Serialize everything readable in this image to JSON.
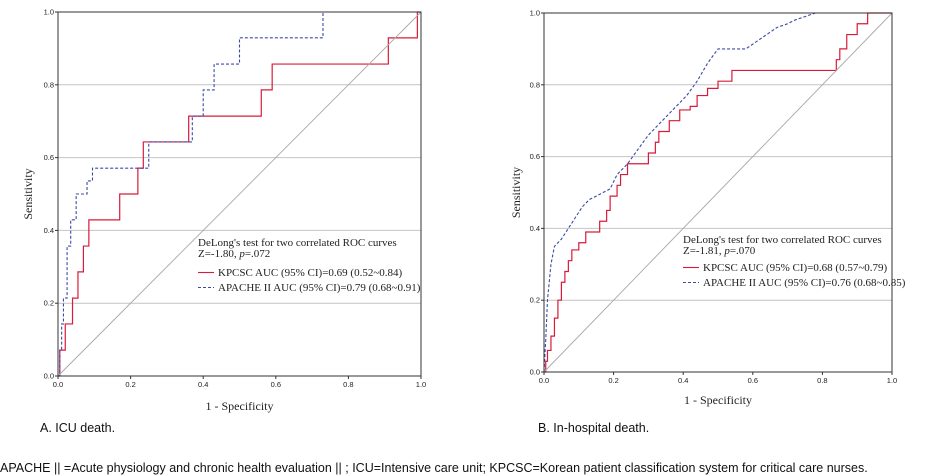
{
  "chart_data": [
    {
      "type": "line",
      "panel_label": "A. ICU death.",
      "xlabel": "1 - Specificity",
      "ylabel": "Sensitivity",
      "xlim": [
        0,
        1
      ],
      "ylim": [
        0,
        1
      ],
      "xticks": [
        "0.0",
        "0.2",
        "0.4",
        "0.6",
        "0.8",
        "1.0"
      ],
      "yticks": [
        "0.0",
        "0.2",
        "0.4",
        "0.6",
        "0.8",
        "1.0"
      ],
      "grid": "horizontal",
      "annotation": {
        "title": "DeLong's test for two correlated ROC curves",
        "stat_prefix": "Z=-1.80, ",
        "p_symbol": "p",
        "p_value": "=.072"
      },
      "series": [
        {
          "name": "KPCSC AUC (95% CI)=0.69 (0.52~0.84)",
          "color": "#d81b3a",
          "style": "solid",
          "x": [
            0,
            0.005,
            0.005,
            0.02,
            0.02,
            0.04,
            0.04,
            0.055,
            0.055,
            0.07,
            0.07,
            0.085,
            0.085,
            0.1,
            0.1,
            0.17,
            0.17,
            0.22,
            0.22,
            0.235,
            0.235,
            0.36,
            0.36,
            0.56,
            0.56,
            0.59,
            0.59,
            0.91,
            0.91,
            0.99,
            0.99,
            1.0
          ],
          "y": [
            0,
            0,
            0.071,
            0.071,
            0.143,
            0.143,
            0.214,
            0.214,
            0.286,
            0.286,
            0.357,
            0.357,
            0.429,
            0.429,
            0.429,
            0.429,
            0.5,
            0.5,
            0.571,
            0.571,
            0.643,
            0.643,
            0.714,
            0.714,
            0.786,
            0.786,
            0.857,
            0.857,
            0.929,
            0.929,
            1.0,
            1.0
          ]
        },
        {
          "name": "APACHE II AUC (95% CI)=0.79 (0.68~0.91)",
          "color": "#3b4aa8",
          "style": "dashed",
          "x": [
            0,
            0.005,
            0.005,
            0.01,
            0.01,
            0.015,
            0.015,
            0.025,
            0.025,
            0.035,
            0.035,
            0.05,
            0.05,
            0.065,
            0.065,
            0.08,
            0.08,
            0.095,
            0.095,
            0.225,
            0.225,
            0.25,
            0.25,
            0.37,
            0.37,
            0.4,
            0.4,
            0.43,
            0.43,
            0.5,
            0.5,
            0.7,
            0.7,
            0.73,
            0.73,
            1.0
          ],
          "y": [
            0,
            0,
            0.071,
            0.071,
            0.143,
            0.143,
            0.214,
            0.214,
            0.357,
            0.357,
            0.429,
            0.429,
            0.5,
            0.5,
            0.5,
            0.5,
            0.536,
            0.536,
            0.571,
            0.571,
            0.571,
            0.571,
            0.643,
            0.643,
            0.714,
            0.714,
            0.786,
            0.786,
            0.857,
            0.857,
            0.929,
            0.929,
            0.929,
            0.929,
            1.0,
            1.0
          ]
        },
        {
          "name": "",
          "color": "#a8a8a8",
          "style": "reference",
          "x": [
            0,
            1
          ],
          "y": [
            0,
            1
          ]
        }
      ]
    },
    {
      "type": "line",
      "panel_label": "B. In-hospital death.",
      "xlabel": "1 - Specificity",
      "ylabel": "Sensitivity",
      "xlim": [
        0,
        1
      ],
      "ylim": [
        0,
        1
      ],
      "xticks": [
        "0.0",
        "0.2",
        "0.4",
        "0.6",
        "0.8",
        "1.0"
      ],
      "yticks": [
        "0.0",
        "0.2",
        "0.4",
        "0.6",
        "0.8",
        "1.0"
      ],
      "grid": "horizontal",
      "annotation": {
        "title": "DeLong's test for two correlated ROC curves",
        "stat_prefix": "Z=-1.81, ",
        "p_symbol": "p",
        "p_value": "=.070"
      },
      "series": [
        {
          "name": "KPCSC AUC (95% CI)=0.68 (0.57~0.79)",
          "color": "#d81b3a",
          "style": "solid",
          "x": [
            0,
            0.005,
            0.005,
            0.01,
            0.01,
            0.02,
            0.02,
            0.03,
            0.03,
            0.04,
            0.04,
            0.05,
            0.05,
            0.06,
            0.06,
            0.07,
            0.07,
            0.08,
            0.08,
            0.1,
            0.1,
            0.12,
            0.12,
            0.16,
            0.16,
            0.18,
            0.18,
            0.19,
            0.19,
            0.21,
            0.21,
            0.22,
            0.22,
            0.24,
            0.24,
            0.25,
            0.25,
            0.26,
            0.26,
            0.3,
            0.3,
            0.32,
            0.32,
            0.33,
            0.33,
            0.36,
            0.36,
            0.38,
            0.38,
            0.39,
            0.39,
            0.42,
            0.42,
            0.44,
            0.44,
            0.47,
            0.47,
            0.5,
            0.5,
            0.54,
            0.54,
            0.57,
            0.57,
            0.6,
            0.6,
            0.84,
            0.84,
            0.85,
            0.85,
            0.87,
            0.87,
            0.9,
            0.9,
            0.93,
            0.93,
            0.97,
            0.97,
            1.0
          ],
          "y": [
            0,
            0,
            0.03,
            0.03,
            0.06,
            0.06,
            0.1,
            0.1,
            0.15,
            0.15,
            0.2,
            0.2,
            0.25,
            0.25,
            0.28,
            0.28,
            0.31,
            0.31,
            0.34,
            0.34,
            0.36,
            0.36,
            0.39,
            0.39,
            0.42,
            0.42,
            0.45,
            0.45,
            0.49,
            0.49,
            0.52,
            0.52,
            0.55,
            0.55,
            0.58,
            0.58,
            0.58,
            0.58,
            0.58,
            0.58,
            0.61,
            0.61,
            0.64,
            0.64,
            0.67,
            0.67,
            0.7,
            0.7,
            0.7,
            0.7,
            0.73,
            0.73,
            0.74,
            0.74,
            0.77,
            0.77,
            0.79,
            0.79,
            0.81,
            0.81,
            0.84,
            0.84,
            0.84,
            0.84,
            0.84,
            0.84,
            0.87,
            0.87,
            0.9,
            0.9,
            0.94,
            0.94,
            0.97,
            0.97,
            1.0,
            1.0,
            1.0,
            1.0
          ]
        },
        {
          "name": "APACHE II AUC (95% CI)=0.76 (0.68~0.85)",
          "color": "#3b4aa8",
          "style": "dashed",
          "x": [
            0,
            0.005,
            0.01,
            0.015,
            0.02,
            0.03,
            0.05,
            0.07,
            0.09,
            0.11,
            0.13,
            0.15,
            0.19,
            0.21,
            0.24,
            0.27,
            0.3,
            0.34,
            0.38,
            0.41,
            0.44,
            0.47,
            0.5,
            0.58,
            0.61,
            0.64,
            0.67,
            0.7,
            0.72,
            0.75,
            0.78,
            1.0
          ],
          "y": [
            0,
            0.09,
            0.2,
            0.25,
            0.3,
            0.35,
            0.37,
            0.4,
            0.43,
            0.46,
            0.48,
            0.49,
            0.51,
            0.55,
            0.58,
            0.62,
            0.66,
            0.7,
            0.74,
            0.77,
            0.81,
            0.86,
            0.9,
            0.9,
            0.92,
            0.94,
            0.96,
            0.97,
            0.98,
            0.99,
            1.0,
            1.0
          ]
        },
        {
          "name": "",
          "color": "#a8a8a8",
          "style": "reference",
          "x": [
            0,
            1
          ],
          "y": [
            0,
            1
          ]
        }
      ]
    }
  ],
  "footnote": "APACHE  ||  =Acute physiology and chronic health evaluation  || ; ICU=Intensive care unit; KPCSC=Korean patient classification system for critical care nurses."
}
